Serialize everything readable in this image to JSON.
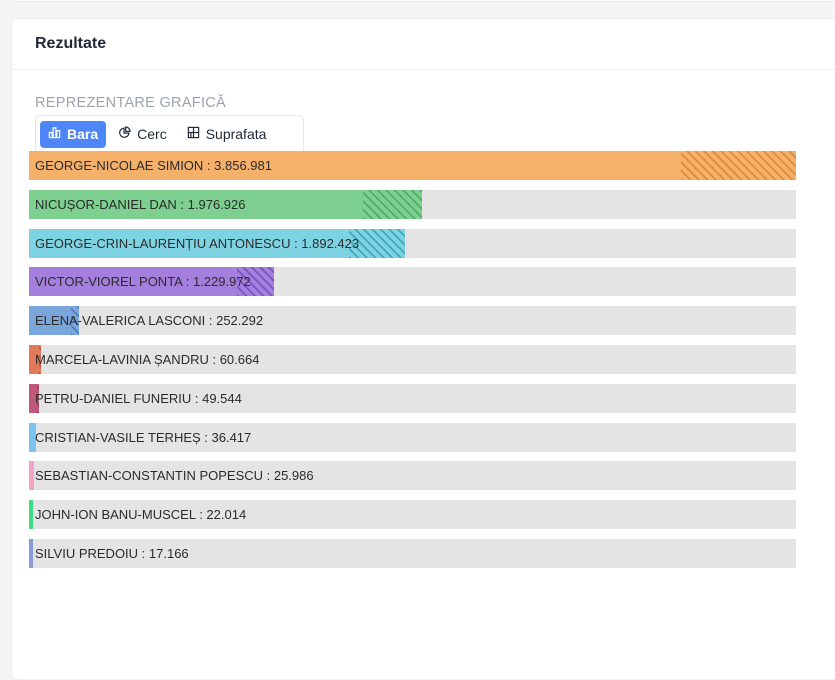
{
  "header": {
    "title": "Rezultate"
  },
  "section": {
    "label": "REPREZENTARE GRAFICĂ"
  },
  "tabs": [
    {
      "label": "Bara",
      "icon": "bar-chart-icon",
      "active": true
    },
    {
      "label": "Cerc",
      "icon": "pie-chart-icon",
      "active": false
    },
    {
      "label": "Suprafata",
      "icon": "grid-icon",
      "active": false
    }
  ],
  "chart_data": {
    "type": "bar",
    "orientation": "horizontal",
    "categories": [
      "GEORGE-NICOLAE SIMION",
      "NICUȘOR-DANIEL DAN",
      "GEORGE-CRIN-LAURENȚIU ANTONESCU",
      "VICTOR-VIOREL PONTA",
      "ELENA-VALERICA LASCONI",
      "MARCELA-LAVINIA ȘANDRU",
      "PETRU-DANIEL FUNERIU",
      "CRISTIAN-VASILE TERHEȘ",
      "SEBASTIAN-CONSTANTIN POPESCU",
      "JOHN-ION BANU-MUSCEL",
      "SILVIU PREDOIU"
    ],
    "values": [
      3856981,
      1976926,
      1892423,
      1229972,
      252292,
      60664,
      49544,
      36417,
      25986,
      22014,
      17166
    ],
    "labels": [
      "GEORGE-NICOLAE SIMION : 3.856.981",
      "NICUȘOR-DANIEL DAN : 1.976.926",
      "GEORGE-CRIN-LAURENȚIU ANTONESCU : 1.892.423",
      "VICTOR-VIOREL PONTA : 1.229.972",
      "ELENA-VALERICA LASCONI : 252.292",
      "MARCELA-LAVINIA ȘANDRU : 60.664",
      "PETRU-DANIEL FUNERIU : 49.544",
      "CRISTIAN-VASILE TERHEȘ : 36.417",
      "SEBASTIAN-CONSTANTIN POPESCU : 25.986",
      "JOHN-ION BANU-MUSCEL : 22.014",
      "SILVIU PREDOIU : 17.166"
    ],
    "colors": [
      "#f5b06a",
      "#7dd08f",
      "#7ed3e3",
      "#a57fdd",
      "#7ba6dc",
      "#e07a5a",
      "#c0587a",
      "#7cc3f0",
      "#f0a3c5",
      "#3ddc84",
      "#8a9ad8"
    ],
    "hatch_colors": [
      "#e08a3a",
      "#4caf6a",
      "#3fa8bd",
      "#7a54c0",
      "#4f7fbf",
      "#b85436",
      "#963a5a",
      "#4a9ad0",
      "#d0799f",
      "#22b565",
      "#5f6fb5"
    ],
    "grid": false
  }
}
